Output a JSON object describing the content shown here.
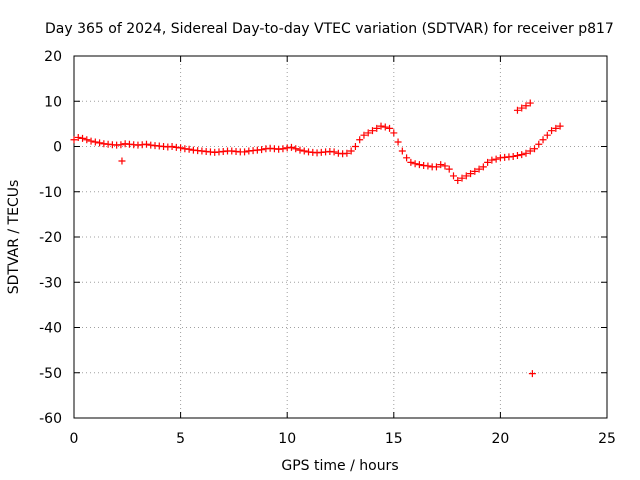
{
  "chart_data": {
    "type": "scatter",
    "title": "Day 365 of 2024, Sidereal Day-to-day VTEC variation (SDTVAR) for receiver p817",
    "xlabel": "GPS time / hours",
    "ylabel": "SDTVAR / TECUs",
    "xlim": [
      0,
      25
    ],
    "ylim": [
      -60,
      20
    ],
    "xticks": [
      0,
      5,
      10,
      15,
      20,
      25
    ],
    "yticks": [
      20,
      10,
      0,
      -10,
      -20,
      -30,
      -40,
      -50,
      -60
    ],
    "grid": true,
    "marker": "+",
    "series": [
      {
        "name": "SDTVAR",
        "color": "#ff0000",
        "x": [
          0.0,
          0.2,
          0.4,
          0.6,
          0.8,
          1.0,
          1.2,
          1.4,
          1.6,
          1.8,
          2.0,
          2.2,
          2.4,
          2.6,
          2.8,
          3.0,
          3.2,
          3.4,
          3.6,
          3.8,
          4.0,
          4.2,
          4.4,
          4.6,
          4.8,
          5.0,
          5.2,
          5.4,
          5.6,
          5.8,
          6.0,
          6.2,
          6.4,
          6.6,
          6.8,
          7.0,
          7.2,
          7.4,
          7.6,
          7.8,
          8.0,
          8.2,
          8.4,
          8.6,
          8.8,
          9.0,
          9.2,
          9.4,
          9.6,
          9.8,
          10.0,
          10.2,
          10.4,
          10.6,
          10.8,
          11.0,
          11.2,
          11.4,
          11.6,
          11.8,
          12.0,
          12.2,
          12.4,
          12.6,
          12.8,
          13.0,
          13.2,
          13.4,
          13.6,
          13.8,
          14.0,
          14.2,
          14.4,
          14.6,
          14.8,
          15.0,
          15.2,
          15.4,
          15.6,
          15.8,
          16.0,
          16.2,
          16.4,
          16.6,
          16.8,
          17.0,
          17.2,
          17.4,
          17.6,
          17.8,
          18.0,
          18.2,
          18.4,
          18.6,
          18.8,
          19.0,
          19.2,
          19.4,
          19.6,
          19.8,
          20.0,
          20.2,
          20.4,
          20.6,
          20.8,
          21.0,
          21.2,
          21.4,
          21.6,
          21.8,
          22.0,
          22.2,
          22.4,
          22.6,
          22.8,
          2.25,
          20.8,
          21.0,
          21.2,
          21.4,
          21.5
        ],
        "y": [
          1.5,
          2.0,
          1.8,
          1.5,
          1.2,
          1.0,
          0.8,
          0.6,
          0.5,
          0.4,
          0.3,
          0.4,
          0.6,
          0.5,
          0.4,
          0.3,
          0.4,
          0.5,
          0.3,
          0.2,
          0.1,
          0.0,
          -0.1,
          0.0,
          -0.2,
          -0.3,
          -0.5,
          -0.6,
          -0.8,
          -0.9,
          -1.0,
          -1.1,
          -1.2,
          -1.3,
          -1.2,
          -1.1,
          -1.0,
          -1.0,
          -1.1,
          -1.2,
          -1.2,
          -1.0,
          -0.9,
          -0.8,
          -0.7,
          -0.5,
          -0.4,
          -0.5,
          -0.6,
          -0.5,
          -0.3,
          -0.2,
          -0.5,
          -0.8,
          -1.0,
          -1.2,
          -1.3,
          -1.4,
          -1.3,
          -1.2,
          -1.1,
          -1.2,
          -1.5,
          -1.6,
          -1.5,
          -1.0,
          0.0,
          1.5,
          2.5,
          3.0,
          3.5,
          4.0,
          4.5,
          4.3,
          4.0,
          3.0,
          1.0,
          -1.0,
          -2.5,
          -3.5,
          -3.8,
          -4.0,
          -4.2,
          -4.3,
          -4.5,
          -4.5,
          -4.0,
          -4.3,
          -5.0,
          -6.5,
          -7.5,
          -7.0,
          -6.5,
          -6.0,
          -5.5,
          -5.0,
          -4.5,
          -3.5,
          -3.0,
          -2.8,
          -2.5,
          -2.4,
          -2.3,
          -2.2,
          -2.0,
          -1.8,
          -1.5,
          -1.0,
          -0.5,
          0.5,
          1.5,
          2.5,
          3.5,
          4.0,
          4.5,
          -3.2,
          8.0,
          8.5,
          9.0,
          9.6,
          -50.2
        ]
      }
    ]
  }
}
